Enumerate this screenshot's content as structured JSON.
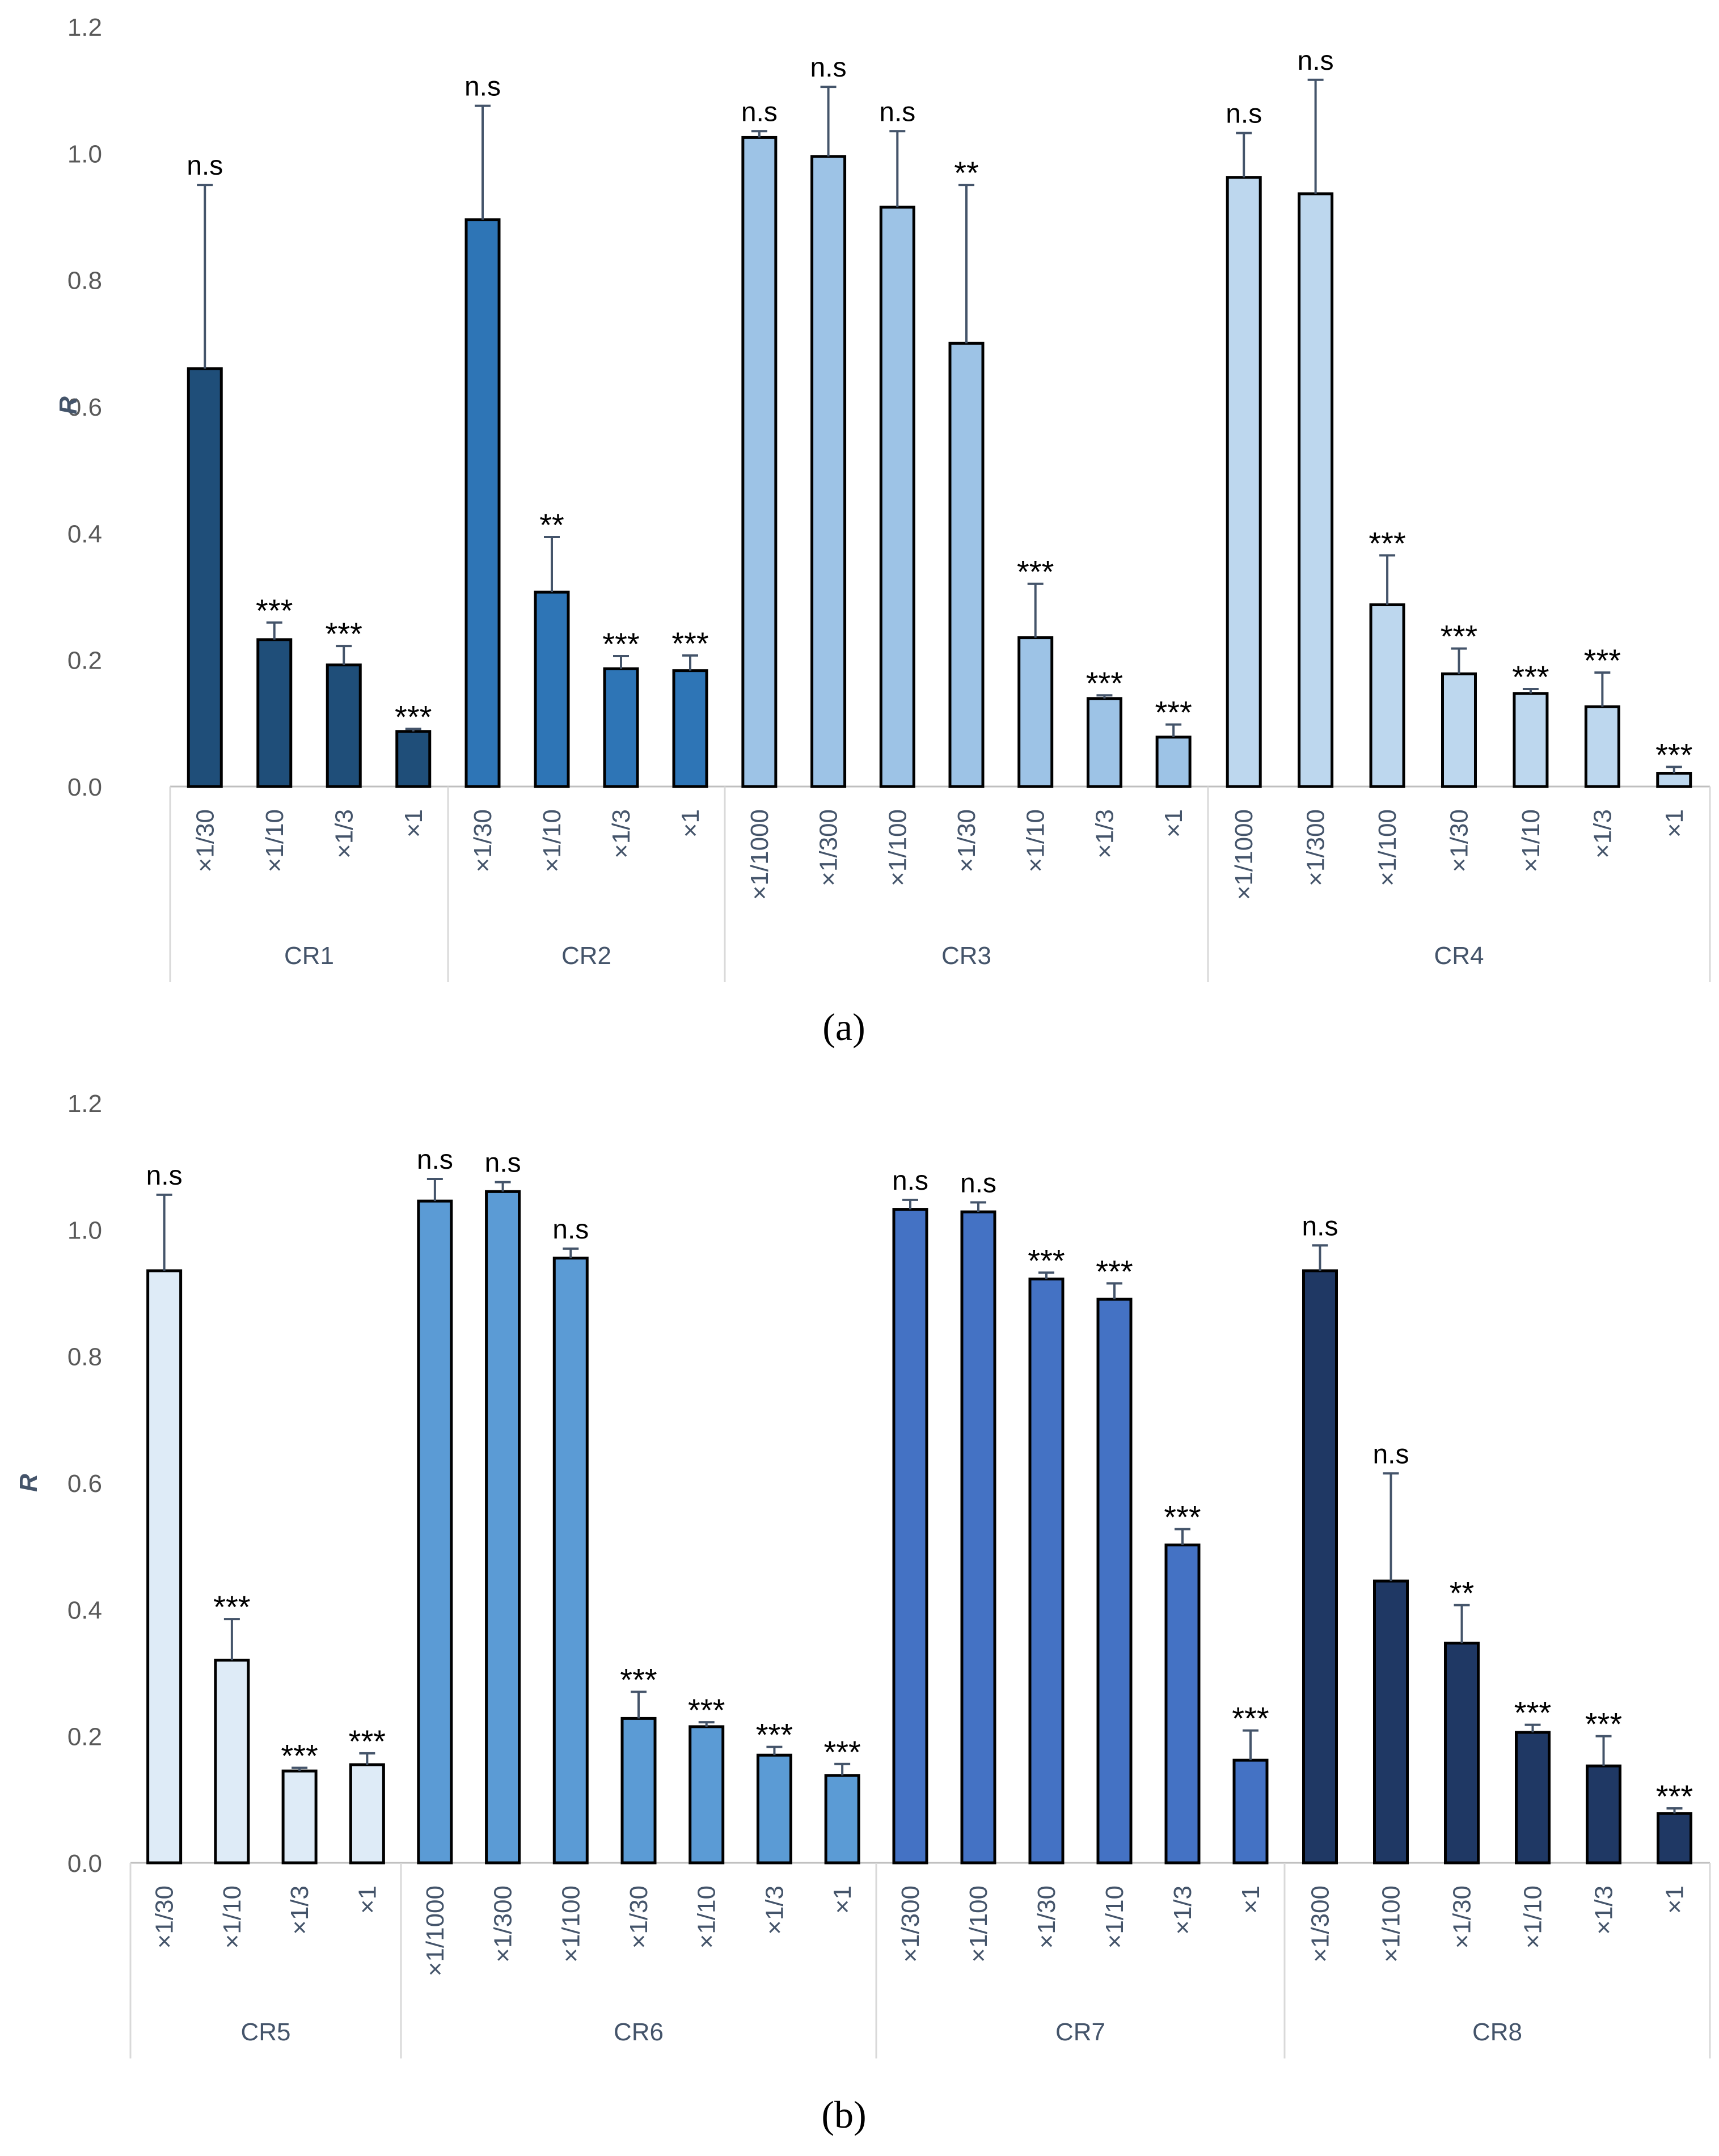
{
  "panels": [
    "(a)",
    "(b)"
  ],
  "chart_data": [
    {
      "type": "bar",
      "panel": "(a)",
      "ylabel": "R",
      "ylim": [
        0,
        1.2
      ],
      "yticks": [
        "0.0",
        "0.2",
        "0.4",
        "0.6",
        "0.8",
        "1.0",
        "1.2"
      ],
      "groups": [
        {
          "name": "CR1",
          "color": "#1f4e79",
          "bars": [
            {
              "label": "×1/30",
              "value": 0.66,
              "err": 0.29,
              "sig": "n.s"
            },
            {
              "label": "×1/10",
              "value": 0.232,
              "err": 0.027,
              "sig": "***"
            },
            {
              "label": "×1/3",
              "value": 0.192,
              "err": 0.03,
              "sig": "***"
            },
            {
              "label": "×1",
              "value": 0.087,
              "err": 0.004,
              "sig": "***"
            }
          ]
        },
        {
          "name": "CR2",
          "color": "#2e75b6",
          "bars": [
            {
              "label": "×1/30",
              "value": 0.895,
              "err": 0.18,
              "sig": "n.s"
            },
            {
              "label": "×1/10",
              "value": 0.307,
              "err": 0.087,
              "sig": "**"
            },
            {
              "label": "×1/3",
              "value": 0.186,
              "err": 0.02,
              "sig": "***"
            },
            {
              "label": "×1",
              "value": 0.183,
              "err": 0.024,
              "sig": "***"
            }
          ]
        },
        {
          "name": "CR3",
          "color": "#9dc3e6",
          "bars": [
            {
              "label": "×1/1000",
              "value": 1.025,
              "err": 0.01,
              "sig": "n.s"
            },
            {
              "label": "×1/300",
              "value": 0.995,
              "err": 0.11,
              "sig": "n.s"
            },
            {
              "label": "×1/100",
              "value": 0.915,
              "err": 0.12,
              "sig": "n.s"
            },
            {
              "label": "×1/30",
              "value": 0.7,
              "err": 0.25,
              "sig": "**"
            },
            {
              "label": "×1/10",
              "value": 0.235,
              "err": 0.085,
              "sig": "***"
            },
            {
              "label": "×1/3",
              "value": 0.139,
              "err": 0.005,
              "sig": "***"
            },
            {
              "label": "×1",
              "value": 0.078,
              "err": 0.02,
              "sig": "***"
            }
          ]
        },
        {
          "name": "CR4",
          "color": "#bdd7ee",
          "bars": [
            {
              "label": "×1/1000",
              "value": 0.962,
              "err": 0.07,
              "sig": "n.s"
            },
            {
              "label": "×1/300",
              "value": 0.936,
              "err": 0.18,
              "sig": "n.s"
            },
            {
              "label": "×1/100",
              "value": 0.287,
              "err": 0.078,
              "sig": "***"
            },
            {
              "label": "×1/30",
              "value": 0.178,
              "err": 0.04,
              "sig": "***"
            },
            {
              "label": "×1/10",
              "value": 0.147,
              "err": 0.007,
              "sig": "***"
            },
            {
              "label": "×1/3",
              "value": 0.126,
              "err": 0.054,
              "sig": "***"
            },
            {
              "label": "×1",
              "value": 0.021,
              "err": 0.01,
              "sig": "***"
            }
          ]
        }
      ]
    },
    {
      "type": "bar",
      "panel": "(b)",
      "ylabel": "R",
      "ylim": [
        0,
        1.2
      ],
      "yticks": [
        "0.0",
        "0.2",
        "0.4",
        "0.6",
        "0.8",
        "1.0",
        "1.2"
      ],
      "groups": [
        {
          "name": "CR5",
          "color": "#deebf7",
          "bars": [
            {
              "label": "×1/30",
              "value": 0.935,
              "err": 0.12,
              "sig": "n.s"
            },
            {
              "label": "×1/10",
              "value": 0.32,
              "err": 0.065,
              "sig": "***"
            },
            {
              "label": "×1/3",
              "value": 0.145,
              "err": 0.005,
              "sig": "***"
            },
            {
              "label": "×1",
              "value": 0.155,
              "err": 0.018,
              "sig": "***"
            }
          ]
        },
        {
          "name": "CR6",
          "color": "#5b9bd5",
          "bars": [
            {
              "label": "×1/1000",
              "value": 1.045,
              "err": 0.035,
              "sig": "n.s"
            },
            {
              "label": "×1/300",
              "value": 1.06,
              "err": 0.015,
              "sig": "n.s"
            },
            {
              "label": "×1/100",
              "value": 0.955,
              "err": 0.015,
              "sig": "n.s"
            },
            {
              "label": "×1/30",
              "value": 0.228,
              "err": 0.042,
              "sig": "***"
            },
            {
              "label": "×1/10",
              "value": 0.215,
              "err": 0.007,
              "sig": "***"
            },
            {
              "label": "×1/3",
              "value": 0.17,
              "err": 0.013,
              "sig": "***"
            },
            {
              "label": "×1",
              "value": 0.138,
              "err": 0.018,
              "sig": "***"
            }
          ]
        },
        {
          "name": "CR7",
          "color": "#4472c4",
          "bars": [
            {
              "label": "×1/300",
              "value": 1.032,
              "err": 0.015,
              "sig": "n.s"
            },
            {
              "label": "×1/100",
              "value": 1.028,
              "err": 0.015,
              "sig": "n.s"
            },
            {
              "label": "×1/30",
              "value": 0.922,
              "err": 0.01,
              "sig": "***"
            },
            {
              "label": "×1/10",
              "value": 0.89,
              "err": 0.025,
              "sig": "***"
            },
            {
              "label": "×1/3",
              "value": 0.502,
              "err": 0.025,
              "sig": "***"
            },
            {
              "label": "×1",
              "value": 0.162,
              "err": 0.047,
              "sig": "***"
            }
          ]
        },
        {
          "name": "CR8",
          "color": "#1f3864",
          "bars": [
            {
              "label": "×1/300",
              "value": 0.935,
              "err": 0.04,
              "sig": "n.s"
            },
            {
              "label": "×1/100",
              "value": 0.445,
              "err": 0.17,
              "sig": "n.s"
            },
            {
              "label": "×1/30",
              "value": 0.347,
              "err": 0.06,
              "sig": "**"
            },
            {
              "label": "×1/10",
              "value": 0.206,
              "err": 0.012,
              "sig": "***"
            },
            {
              "label": "×1/3",
              "value": 0.153,
              "err": 0.047,
              "sig": "***"
            },
            {
              "label": "×1",
              "value": 0.078,
              "err": 0.008,
              "sig": "***"
            }
          ]
        }
      ]
    }
  ]
}
